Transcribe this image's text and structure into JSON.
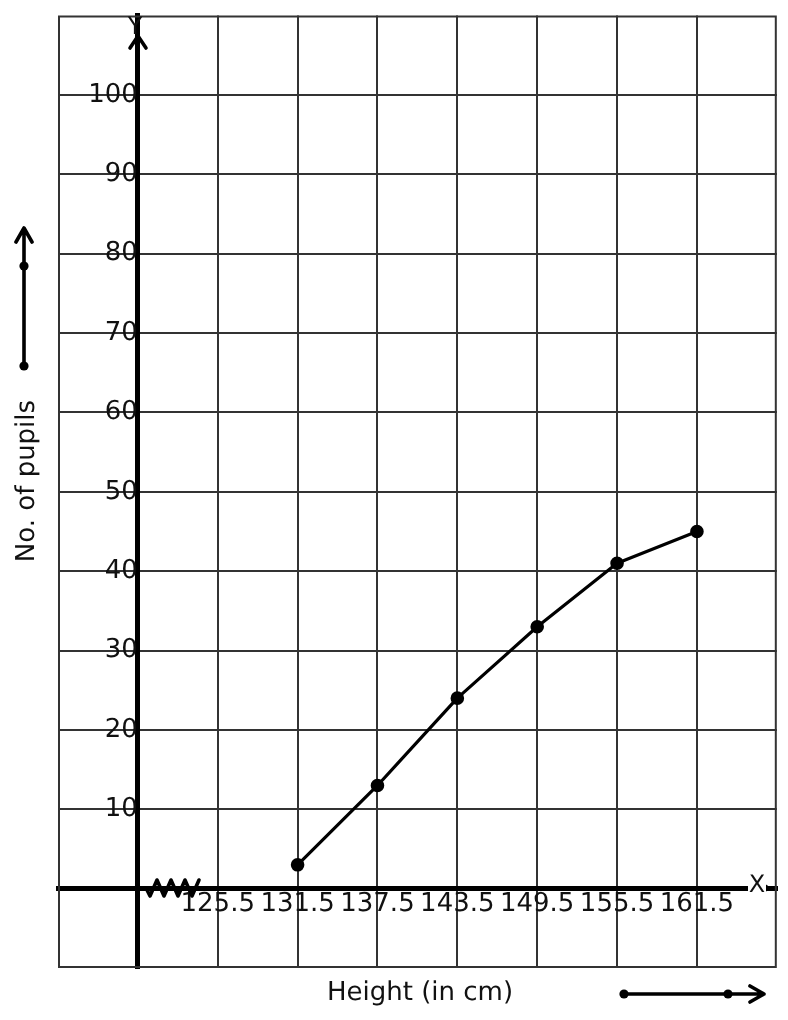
{
  "chart_data": {
    "type": "line",
    "xlabel": "Height (in cm)",
    "ylabel": "No. of pupils",
    "annotations": [
      "Y",
      "X"
    ],
    "x": [
      131.5,
      137.5,
      143.5,
      149.5,
      155.5,
      161.5
    ],
    "series": [
      {
        "color": "#000000",
        "values": [
          3,
          13,
          24,
          33,
          41,
          45
        ]
      }
    ],
    "xlim": [
      113.5,
      167.5
    ],
    "xticks": [
      {
        "value": 119.5,
        "label": null
      },
      125.5,
      131.5,
      137.5,
      143.5,
      149.5,
      155.5,
      161.5
    ],
    "ylim": [
      -10,
      110
    ],
    "yticks": [
      {
        "value": 0,
        "label": null
      },
      10,
      20,
      30,
      40,
      50,
      60,
      70,
      80,
      90,
      100
    ],
    "grid": true,
    "legend": false,
    "marker": "circle",
    "line_style": "solid"
  }
}
